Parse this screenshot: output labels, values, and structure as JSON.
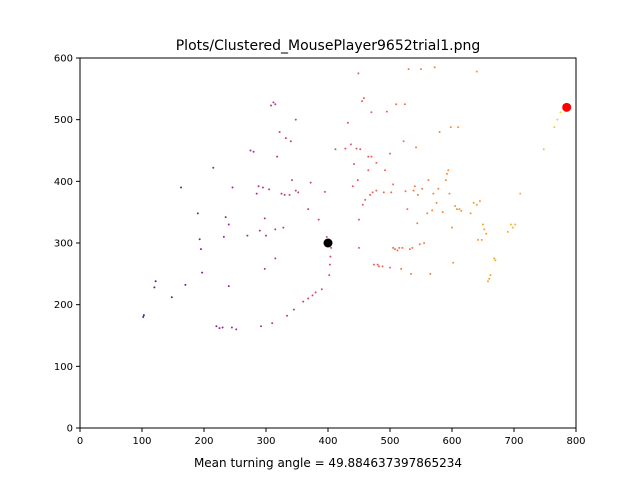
{
  "chart_data": {
    "type": "scatter",
    "title": "Plots/Clustered_MousePlayer9652trial1.png",
    "xlabel": "Mean turning angle = 49.884637397865234",
    "ylabel": "",
    "xlim": [
      0,
      800
    ],
    "ylim": [
      0,
      600
    ],
    "xticks": [
      "0",
      "100",
      "200",
      "300",
      "400",
      "500",
      "600",
      "700",
      "800"
    ],
    "yticks": [
      "0",
      "100",
      "200",
      "300",
      "400",
      "500",
      "600"
    ],
    "grid": false,
    "legend": "none",
    "colormap": [
      "#5a0fa8",
      "#8a1fa0",
      "#c23a8a",
      "#e0566a",
      "#f0804a",
      "#f9a820",
      "#fccf30"
    ],
    "start_point": {
      "x": 400,
      "y": 300,
      "color": "#000000"
    },
    "end_point": {
      "x": 785,
      "y": 520,
      "color": "#ff0000"
    },
    "points": [
      [
        102,
        180
      ],
      [
        103,
        183
      ],
      [
        120,
        228
      ],
      [
        122,
        238
      ],
      [
        148,
        212
      ],
      [
        163,
        390
      ],
      [
        170,
        232
      ],
      [
        190,
        348
      ],
      [
        193,
        306
      ],
      [
        195,
        290
      ],
      [
        197,
        252
      ],
      [
        215,
        422
      ],
      [
        220,
        165
      ],
      [
        225,
        162
      ],
      [
        230,
        163
      ],
      [
        232,
        310
      ],
      [
        235,
        342
      ],
      [
        240,
        230
      ],
      [
        240,
        330
      ],
      [
        245,
        163
      ],
      [
        246,
        390
      ],
      [
        252,
        160
      ],
      [
        270,
        312
      ],
      [
        275,
        450
      ],
      [
        280,
        448
      ],
      [
        285,
        380
      ],
      [
        288,
        392
      ],
      [
        290,
        320
      ],
      [
        292,
        165
      ],
      [
        295,
        390
      ],
      [
        298,
        258
      ],
      [
        298,
        340
      ],
      [
        300,
        312
      ],
      [
        305,
        387
      ],
      [
        308,
        523
      ],
      [
        310,
        170
      ],
      [
        312,
        528
      ],
      [
        315,
        525
      ],
      [
        315,
        275
      ],
      [
        315,
        322
      ],
      [
        318,
        440
      ],
      [
        322,
        480
      ],
      [
        325,
        380
      ],
      [
        328,
        325
      ],
      [
        330,
        378
      ],
      [
        332,
        470
      ],
      [
        334,
        182
      ],
      [
        338,
        378
      ],
      [
        340,
        465
      ],
      [
        342,
        402
      ],
      [
        345,
        192
      ],
      [
        348,
        385
      ],
      [
        348,
        500
      ],
      [
        352,
        382
      ],
      [
        360,
        205
      ],
      [
        368,
        210
      ],
      [
        368,
        355
      ],
      [
        372,
        398
      ],
      [
        375,
        215
      ],
      [
        380,
        220
      ],
      [
        385,
        338
      ],
      [
        390,
        225
      ],
      [
        395,
        383
      ],
      [
        398,
        310
      ],
      [
        402,
        248
      ],
      [
        403,
        265
      ],
      [
        404,
        278
      ],
      [
        405,
        292
      ],
      [
        412,
        452
      ],
      [
        428,
        453
      ],
      [
        432,
        495
      ],
      [
        437,
        460
      ],
      [
        440,
        392
      ],
      [
        442,
        428
      ],
      [
        446,
        453
      ],
      [
        448,
        402
      ],
      [
        449,
        575
      ],
      [
        450,
        292
      ],
      [
        450,
        338
      ],
      [
        452,
        452
      ],
      [
        455,
        530
      ],
      [
        456,
        362
      ],
      [
        458,
        535
      ],
      [
        460,
        370
      ],
      [
        465,
        418
      ],
      [
        465,
        440
      ],
      [
        468,
        378
      ],
      [
        470,
        512
      ],
      [
        470,
        440
      ],
      [
        472,
        382
      ],
      [
        474,
        265
      ],
      [
        478,
        385
      ],
      [
        478,
        430
      ],
      [
        480,
        265
      ],
      [
        482,
        262
      ],
      [
        488,
        262
      ],
      [
        490,
        382
      ],
      [
        492,
        418
      ],
      [
        495,
        513
      ],
      [
        500,
        260
      ],
      [
        500,
        445
      ],
      [
        502,
        382
      ],
      [
        505,
        292
      ],
      [
        505,
        395
      ],
      [
        508,
        290
      ],
      [
        510,
        525
      ],
      [
        512,
        288
      ],
      [
        515,
        292
      ],
      [
        518,
        258
      ],
      [
        520,
        292
      ],
      [
        522,
        465
      ],
      [
        524,
        525
      ],
      [
        525,
        384
      ],
      [
        528,
        355
      ],
      [
        530,
        582
      ],
      [
        532,
        290
      ],
      [
        534,
        250
      ],
      [
        536,
        292
      ],
      [
        538,
        385
      ],
      [
        540,
        392
      ],
      [
        542,
        455
      ],
      [
        544,
        332
      ],
      [
        545,
        378
      ],
      [
        548,
        298
      ],
      [
        550,
        582
      ],
      [
        552,
        388
      ],
      [
        555,
        300
      ],
      [
        560,
        348
      ],
      [
        562,
        402
      ],
      [
        565,
        250
      ],
      [
        568,
        353
      ],
      [
        570,
        380
      ],
      [
        572,
        585
      ],
      [
        575,
        365
      ],
      [
        578,
        388
      ],
      [
        580,
        480
      ],
      [
        585,
        350
      ],
      [
        590,
        402
      ],
      [
        592,
        412
      ],
      [
        594,
        418
      ],
      [
        596,
        380
      ],
      [
        598,
        488
      ],
      [
        600,
        325
      ],
      [
        602,
        268
      ],
      [
        605,
        360
      ],
      [
        608,
        355
      ],
      [
        610,
        488
      ],
      [
        612,
        355
      ],
      [
        615,
        352
      ],
      [
        630,
        348
      ],
      [
        635,
        365
      ],
      [
        640,
        362
      ],
      [
        640,
        578
      ],
      [
        642,
        305
      ],
      [
        645,
        368
      ],
      [
        648,
        305
      ],
      [
        650,
        330
      ],
      [
        652,
        322
      ],
      [
        655,
        315
      ],
      [
        658,
        238
      ],
      [
        660,
        242
      ],
      [
        662,
        248
      ],
      [
        668,
        275
      ],
      [
        670,
        272
      ],
      [
        690,
        318
      ],
      [
        695,
        330
      ],
      [
        698,
        325
      ],
      [
        702,
        330
      ],
      [
        710,
        380
      ],
      [
        748,
        452
      ],
      [
        765,
        488
      ],
      [
        770,
        500
      ],
      [
        775,
        512
      ],
      [
        780,
        517
      ]
    ]
  }
}
